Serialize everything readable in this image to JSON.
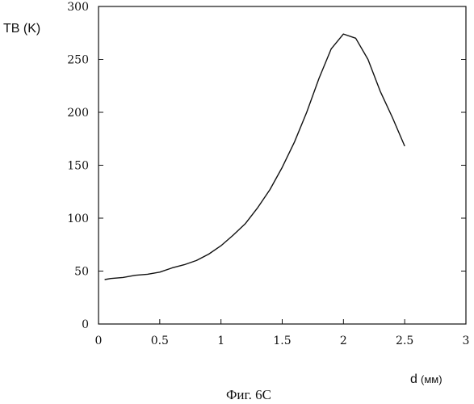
{
  "chart_data": {
    "type": "line",
    "title": "",
    "caption": "Фиг. 6С",
    "ylabel": "TB (K)",
    "xlabel_main": "d",
    "xlabel_unit": "(мм)",
    "xlim": [
      0,
      3
    ],
    "ylim": [
      0,
      300
    ],
    "xticks": [
      0,
      0.5,
      1,
      1.5,
      2,
      2.5,
      3
    ],
    "xtick_labels": [
      "0",
      "0.5",
      "1",
      "1.5",
      "2",
      "2.5",
      "3"
    ],
    "yticks": [
      0,
      50,
      100,
      150,
      200,
      250,
      300
    ],
    "ytick_labels": [
      "0",
      "50",
      "100",
      "150",
      "200",
      "250",
      "300"
    ],
    "grid": false,
    "series": [
      {
        "x": [
          0.05,
          0.1,
          0.2,
          0.3,
          0.4,
          0.5,
          0.6,
          0.7,
          0.8,
          0.9,
          1.0,
          1.1,
          1.2,
          1.3,
          1.4,
          1.5,
          1.6,
          1.7,
          1.8,
          1.9,
          2.0,
          2.1,
          2.2,
          2.3,
          2.4,
          2.5
        ],
        "y": [
          42,
          43,
          44,
          46,
          47,
          49,
          53,
          56,
          60,
          66,
          74,
          84,
          95,
          110,
          127,
          148,
          172,
          200,
          232,
          260,
          274,
          270,
          250,
          220,
          195,
          168
        ]
      }
    ],
    "line_color": "#111111"
  }
}
